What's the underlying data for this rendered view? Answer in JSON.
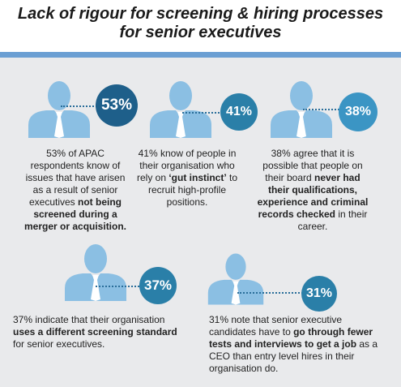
{
  "title": {
    "line1": "Lack of rigour for screening & hiring processes",
    "line2": "for senior executives"
  },
  "colors": {
    "person": "#8bbfe3",
    "tie": "#ffffff",
    "accent_bar": "#6b9fd3",
    "panel": "#e9eaec",
    "badge_dark": "#1e5f8a",
    "badge_mid": "#2a7fa8",
    "badge_light": "#3b95c4"
  },
  "stats": [
    {
      "percent": "53%",
      "p1": "53% of APAC respondents know of issues that have arisen as a result of senior executives ",
      "b1": "not being screened during a merger or acquisition.",
      "p2": ""
    },
    {
      "percent": "41%",
      "p1": "41% know of people in their organisation who rely on ",
      "b1": "‘gut instinct’",
      "p2": " to recruit high-profile positions."
    },
    {
      "percent": "38%",
      "p1": "38% agree that it is possible that people on their board ",
      "b1": "never had their qualifications, experience and criminal records checked",
      "p2": " in their career."
    },
    {
      "percent": "37%",
      "p1": "37% indicate that their organisation ",
      "b1": "uses a different screening standard",
      "p2": " for senior executives."
    },
    {
      "percent": "31%",
      "p1": "31% note that senior executive candidates have to ",
      "b1": "go through fewer tests and interviews to get a job",
      "p2": " as a CEO than entry level hires in their organisation do."
    }
  ]
}
